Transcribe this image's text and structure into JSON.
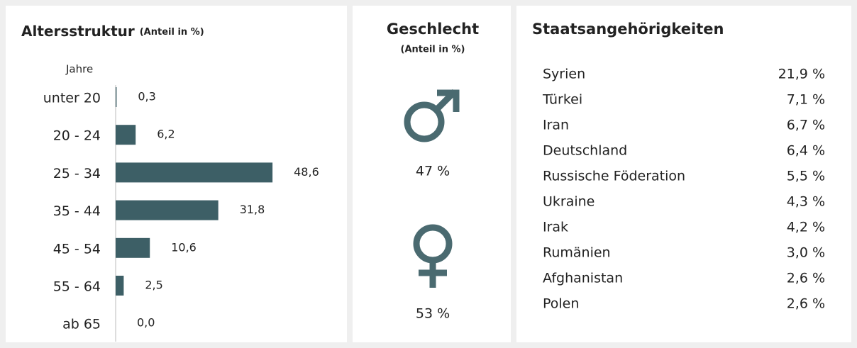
{
  "chart_data": {
    "type": "bar",
    "title": "Altersstruktur",
    "subtitle": "(Anteil in %)",
    "axis_label": "Jahre",
    "categories": [
      "unter 20",
      "20 - 24",
      "25 - 34",
      "35 - 44",
      "45 - 54",
      "55 - 64",
      "ab 65"
    ],
    "values": [
      0.3,
      6.2,
      48.6,
      31.8,
      10.6,
      2.5,
      0.0
    ],
    "value_labels": [
      "0,3",
      "6,2",
      "48,6",
      "31,8",
      "10,6",
      "2,5",
      "0,0"
    ],
    "color": "#3d5f66"
  },
  "gender": {
    "title": "Geschlecht",
    "subtitle": "(Anteil in %)",
    "male": {
      "value": 47,
      "label": "47 %"
    },
    "female": {
      "value": 53,
      "label": "53 %"
    }
  },
  "nationalities": {
    "title": "Staatsangehörigkeiten",
    "rows": [
      [
        "Syrien",
        "21,9 %"
      ],
      [
        "Türkei",
        "7,1 %"
      ],
      [
        "Iran",
        "6,7 %"
      ],
      [
        "Deutschland",
        "6,4 %"
      ],
      [
        "Russische Föderation",
        "5,5 %"
      ],
      [
        "Ukraine",
        "4,3 %"
      ],
      [
        "Irak",
        "4,2 %"
      ],
      [
        "Rumänien",
        "3,0 %"
      ],
      [
        "Afghanistan",
        "2,6 %"
      ],
      [
        "Polen",
        "2,6 %"
      ]
    ]
  }
}
